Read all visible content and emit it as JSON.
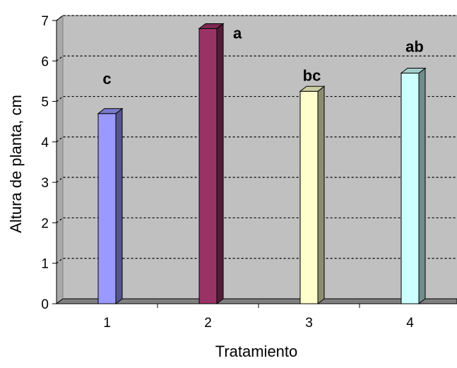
{
  "chart_data": {
    "type": "bar",
    "title": "",
    "xlabel": "Tratamiento",
    "ylabel": "Altura de planta, cm",
    "categories": [
      "1",
      "2",
      "3",
      "4"
    ],
    "values": [
      4.7,
      6.8,
      5.25,
      5.7
    ],
    "significance_labels": [
      "c",
      "a",
      "bc",
      "ab"
    ],
    "ylim": [
      0,
      7
    ],
    "yticks": [
      "0",
      "1",
      "2",
      "3",
      "4",
      "5",
      "6",
      "7"
    ],
    "grid": true,
    "legend": "none",
    "three_d": true,
    "colors": {
      "plot_background": "#C0C0C0",
      "bars": [
        "#9999FF",
        "#993366",
        "#FFFFCC",
        "#CCFFFF"
      ]
    }
  }
}
